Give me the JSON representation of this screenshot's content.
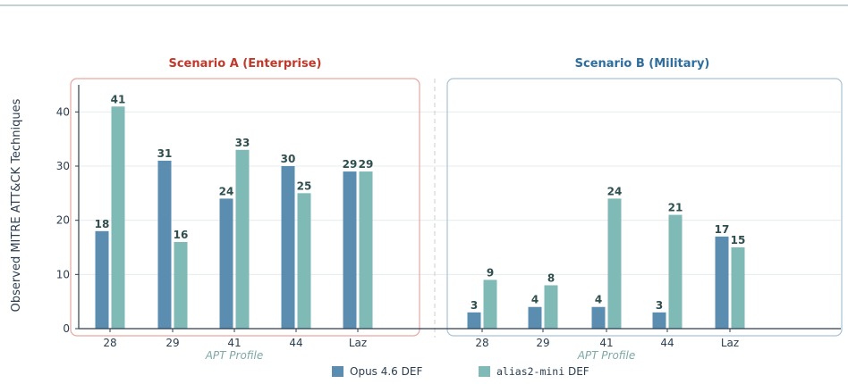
{
  "chart_data": {
    "type": "bar",
    "ylabel": "Observed MITRE ATT&CK Techniques",
    "xlabel": "APT Profile",
    "ylim": [
      0,
      45
    ],
    "yticks": [
      0,
      10,
      20,
      30,
      40
    ],
    "grid": true,
    "legend_position": "bottom-center",
    "legend": [
      {
        "label_code": "",
        "label_text": "Opus 4.6 DEF",
        "color": "#5b8db0"
      },
      {
        "label_code": "alias2-mini",
        "label_text": " DEF",
        "color": "#7fbab6"
      }
    ],
    "panels": [
      {
        "title": "Scenario A (Enterprise)",
        "title_color": "#c0392b",
        "frame_color": "#e6a6a0",
        "categories": [
          "28",
          "29",
          "41",
          "44",
          "Laz"
        ],
        "series": [
          {
            "name": "Opus 4.6 DEF",
            "values": [
              18,
              31,
              24,
              30,
              29
            ]
          },
          {
            "name": "alias2-mini DEF",
            "values": [
              41,
              16,
              33,
              25,
              29
            ]
          }
        ]
      },
      {
        "title": "Scenario B (Military)",
        "title_color": "#2e6e9e",
        "frame_color": "#a9c3d6",
        "categories": [
          "28",
          "29",
          "41",
          "44",
          "Laz"
        ],
        "series": [
          {
            "name": "Opus 4.6 DEF",
            "values": [
              3,
              4,
              4,
              3,
              17
            ]
          },
          {
            "name": "alias2-mini DEF",
            "values": [
              9,
              8,
              24,
              21,
              15
            ]
          }
        ]
      }
    ]
  }
}
